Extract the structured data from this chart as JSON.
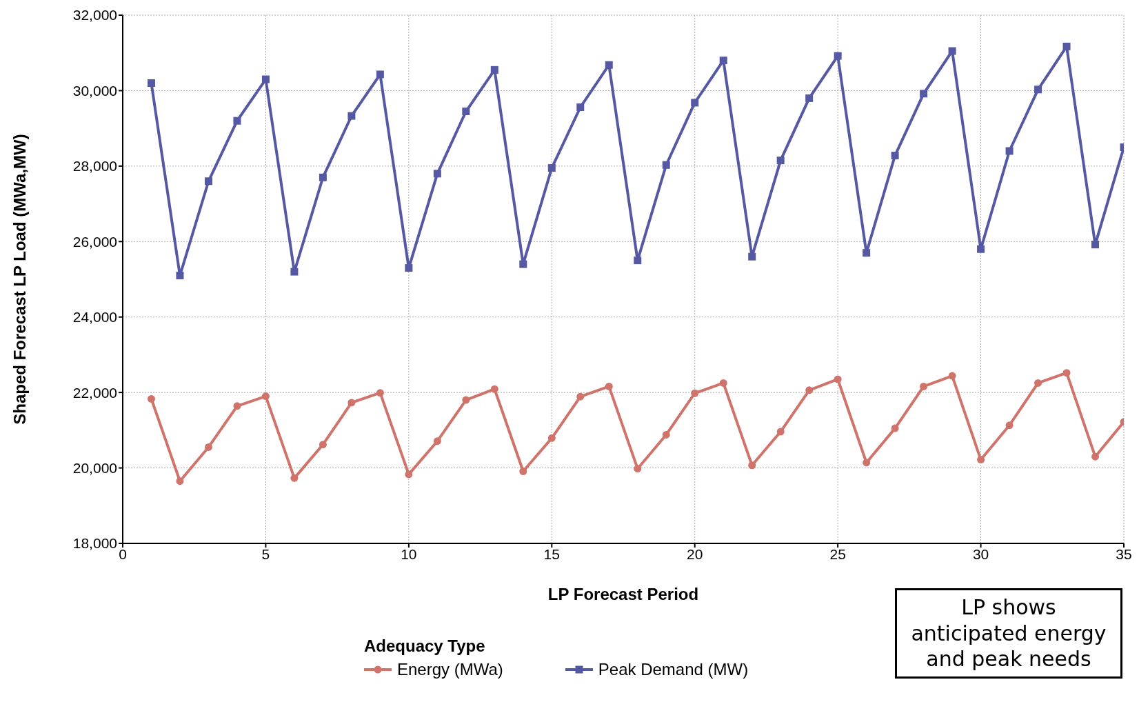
{
  "chart_data": {
    "type": "line",
    "xlabel": "LP Forecast Period",
    "ylabel": "Shaped Forecast LP Load (MWa,MW)",
    "legend_title": "Adequacy Type",
    "legend": "bottom",
    "grid": true,
    "line_style": "solid",
    "x": [
      1,
      2,
      3,
      4,
      5,
      6,
      7,
      8,
      9,
      10,
      11,
      12,
      13,
      14,
      15,
      16,
      17,
      18,
      19,
      20,
      21,
      22,
      23,
      24,
      25,
      26,
      27,
      28,
      29,
      30,
      31,
      32,
      33,
      34,
      35
    ],
    "xlim": [
      0,
      35
    ],
    "xticks": [
      0,
      5,
      10,
      15,
      20,
      25,
      30,
      35
    ],
    "ylim": [
      18000,
      32000
    ],
    "yticks": [
      {
        "value": 18000,
        "label": "18,000"
      },
      {
        "value": 20000,
        "label": "20,000"
      },
      {
        "value": 22000,
        "label": "22,000"
      },
      {
        "value": 24000,
        "label": "24,000"
      },
      {
        "value": 26000,
        "label": "26,000"
      },
      {
        "value": 28000,
        "label": "28,000"
      },
      {
        "value": 30000,
        "label": "30,000"
      },
      {
        "value": 32000,
        "label": "32,000"
      }
    ],
    "series": [
      {
        "name": "Energy (MWa)",
        "color": "#d0736a",
        "marker": "circle",
        "values": [
          21830,
          19650,
          20550,
          21640,
          21900,
          19730,
          20620,
          21730,
          21990,
          19830,
          20710,
          21800,
          22090,
          19910,
          20790,
          21890,
          22160,
          19980,
          20880,
          21980,
          22250,
          20070,
          20960,
          22060,
          22350,
          20140,
          21050,
          22160,
          22440,
          20220,
          21130,
          22250,
          22520,
          20300,
          21220
        ]
      },
      {
        "name": "Peak Demand (MW)",
        "color": "#5558a3",
        "marker": "square",
        "values": [
          30200,
          25100,
          27600,
          29200,
          30300,
          25200,
          27700,
          29330,
          30430,
          25300,
          27800,
          29450,
          30550,
          25400,
          27950,
          29560,
          30680,
          25500,
          28030,
          29680,
          30800,
          25600,
          28150,
          29800,
          30920,
          25700,
          28280,
          29920,
          31050,
          25800,
          28400,
          30030,
          31170,
          25920,
          28500
        ]
      }
    ],
    "annotations": [
      "LP shows anticipated energy and peak needs"
    ]
  }
}
